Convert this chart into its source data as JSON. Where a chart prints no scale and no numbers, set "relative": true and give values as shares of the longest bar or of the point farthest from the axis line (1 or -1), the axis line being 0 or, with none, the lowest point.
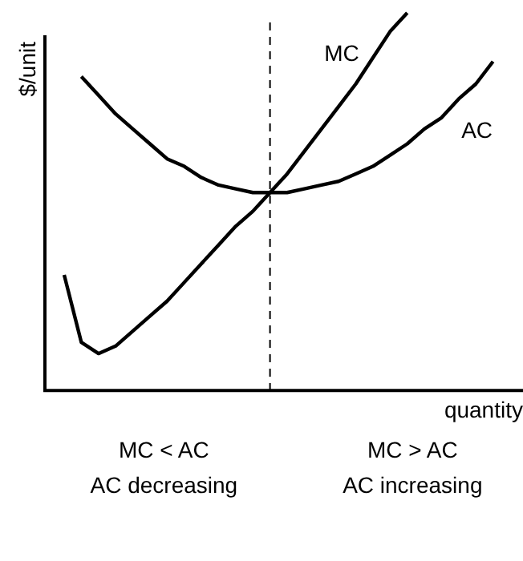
{
  "chart_data": {
    "type": "line",
    "relative": true,
    "ylabel": "$/unit",
    "xlabel": "quantity",
    "grid": false,
    "legend": false,
    "marker": "none",
    "categories": [
      null,
      null,
      null,
      null,
      null,
      null,
      null,
      null,
      null,
      null,
      null,
      null,
      null,
      null,
      null,
      null,
      null,
      null,
      null,
      null,
      null,
      null,
      null,
      null,
      null,
      null,
      null
    ],
    "series": [
      {
        "name": "MC",
        "color": "#000000",
        "values": [
          0.3,
          0.12,
          0.09,
          0.11,
          0.15,
          0.19,
          0.23,
          0.28,
          0.33,
          0.38,
          0.43,
          0.47,
          0.52,
          0.57,
          0.63,
          0.69,
          0.75,
          0.81,
          0.88,
          0.95,
          1.0,
          null,
          null,
          null,
          null,
          null,
          null
        ]
      },
      {
        "name": "AC",
        "color": "#000000",
        "values": [
          null,
          0.83,
          0.78,
          0.73,
          0.69,
          0.65,
          0.61,
          0.59,
          0.56,
          0.54,
          0.53,
          0.52,
          0.52,
          0.52,
          0.53,
          0.54,
          0.55,
          0.57,
          0.59,
          0.62,
          0.65,
          0.69,
          0.72,
          0.77,
          0.81,
          0.87,
          null
        ]
      }
    ],
    "annotations": [
      "MC < AC",
      "AC decreasing",
      "MC > AC",
      "AC increasing"
    ]
  }
}
